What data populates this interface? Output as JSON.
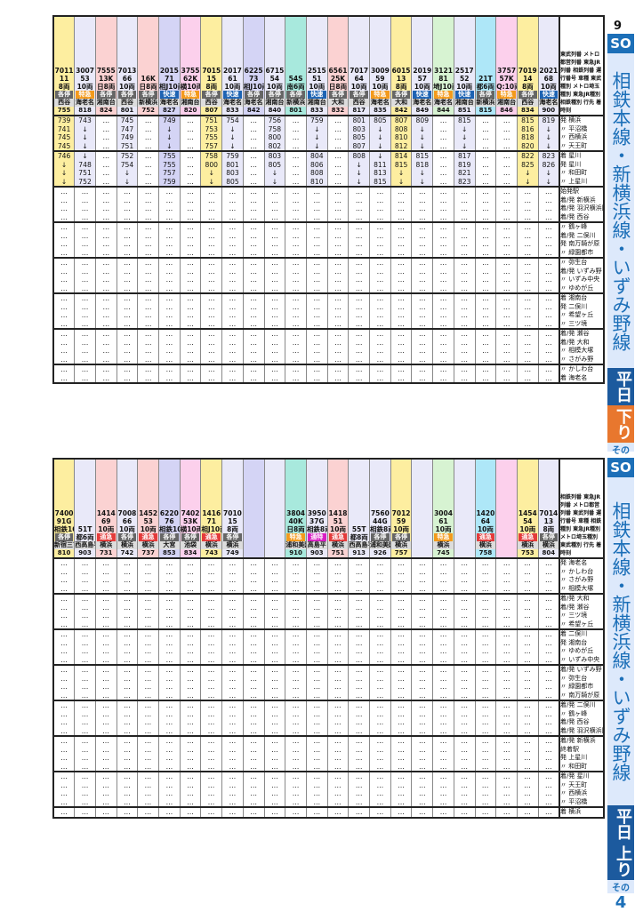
{
  "page": {
    "number": "9",
    "line_code": "SO",
    "line_name": "相鉄本線・新横浜線・いずみ野線",
    "top_direction": {
      "day": "平日",
      "dir": "下り",
      "part_label": "その",
      "part_no": "4"
    },
    "bottom_direction": {
      "day": "平日",
      "dir": "上り",
      "part_label": "その",
      "part_no": "4"
    }
  },
  "top_table": {
    "header_labels": [
      "東武列番",
      "メトロ都営列番",
      "東急JR列番",
      "相鉄列番",
      "運行番号",
      "車種",
      "東武種別",
      "メトロ埼玉種別",
      "東急JR種別",
      "相鉄種別",
      "行先",
      "着時刻"
    ],
    "columns": [
      {
        "sotetsu": "7011",
        "run": "11",
        "cars": "8両",
        "type": "各停",
        "dest": "西谷",
        "arr": "755",
        "times": [
          "739",
          "741",
          "745",
          "745",
          "746",
          "↓",
          "↓",
          "↓"
        ]
      },
      {
        "sotetsu": "3007",
        "run": "53",
        "cars": "10両",
        "type": "特急",
        "dest": "海老名",
        "arr": "818",
        "times": [
          "743",
          "↓",
          "↓",
          "↓",
          "↓",
          "748",
          "751",
          "752"
        ]
      },
      {
        "other": "612K / 213071",
        "sotetsu": "7555",
        "run": "13K",
        "cars": "日8両",
        "line_tag": "三田線",
        "type": "各停",
        "dest": "湘南台",
        "arr": "824",
        "origin": "西高島平 626",
        "times": [
          "…",
          "…",
          "…",
          "…",
          "…",
          "…",
          "…",
          "…"
        ]
      },
      {
        "sotetsu": "7013",
        "run": "66",
        "cars": "10両",
        "type": "各停",
        "dest": "西谷",
        "arr": "801",
        "times": [
          "745",
          "747",
          "749",
          "751",
          "752",
          "754",
          "↓",
          "↓"
        ]
      },
      {
        "other": "B616K / B616K / 216071",
        "run": "16K",
        "cars": "日8両",
        "line_tag": "埼玉線 南北線",
        "type": "各停",
        "dest": "新横浜",
        "arr": "752",
        "origin": "浦和美園 621",
        "times": [
          "…",
          "…",
          "…",
          "…",
          "…",
          "…",
          "…",
          "…"
        ]
      },
      {
        "sotetsu": "2015",
        "run": "71",
        "cars": "相J10両",
        "type": "快速",
        "dest": "海老名",
        "arr": "827",
        "times": [
          "749",
          "↓",
          "↓",
          "↓",
          "755",
          "755",
          "757",
          "759"
        ]
      },
      {
        "other": "E3162K / A562K / 062071",
        "sotetsu": "3755",
        "run": "62K",
        "cars": "横10両",
        "line_tag": "普通 各駅停車 急行",
        "type": "特急",
        "dest": "湘南台",
        "arr": "820",
        "origin": "森林公園 551",
        "times": [
          "…",
          "…",
          "…",
          "…",
          "…",
          "…",
          "…",
          "…"
        ]
      },
      {
        "sotetsu": "7015",
        "run": "15",
        "cars": "8両",
        "type": "各停",
        "dest": "西谷",
        "arr": "807",
        "times": [
          "751",
          "753",
          "755",
          "757",
          "758",
          "800",
          "↓",
          "↓"
        ]
      },
      {
        "sotetsu": "2017",
        "run": "61",
        "cars": "10両",
        "type": "快速",
        "dest": "海老名",
        "arr": "833",
        "times": [
          "754",
          "↓",
          "↓",
          "↓",
          "759",
          "801",
          "803",
          "805"
        ]
      },
      {
        "other": "225M",
        "sotetsu": "6225",
        "run": "73",
        "cars": "相J10両",
        "line_tag": "各駅停車",
        "type": "各停",
        "dest": "海老名",
        "arr": "842",
        "origin": "新宿 725",
        "times": [
          "…",
          "…",
          "…",
          "…",
          "…",
          "…",
          "…",
          "…"
        ]
      },
      {
        "sotetsu": "6715",
        "run": "54",
        "cars": "10両",
        "type": "各停",
        "dest": "湘南台",
        "arr": "840",
        "times": [
          "756",
          "758",
          "800",
          "802",
          "803",
          "805",
          "↓",
          "↓"
        ]
      },
      {
        "other": "B654S / B654S / 354071",
        "run": "54S",
        "cars": "南6両",
        "line_tag": "埼玉線 南北線",
        "type": "各停",
        "dest": "新横浜",
        "arr": "801",
        "origin": "鳩ケ谷 640",
        "times": [
          "…",
          "…",
          "…",
          "…",
          "…",
          "…",
          "…",
          "…"
        ]
      },
      {
        "sotetsu": "2515",
        "run": "51",
        "cars": "10両",
        "type": "快速",
        "dest": "湘南台",
        "arr": "833",
        "times": [
          "759",
          "↓",
          "↓",
          "↓",
          "804",
          "806",
          "808",
          "810"
        ]
      },
      {
        "other": "624K / 225071",
        "sotetsu": "6561",
        "run": "25K",
        "cars": "日8両",
        "line_tag": "三田線 急行",
        "type": "各停",
        "dest": "大和",
        "arr": "832",
        "origin": "西高島平 645",
        "times": [
          "…",
          "…",
          "…",
          "…",
          "…",
          "…",
          "…",
          "…"
        ]
      },
      {
        "sotetsu": "7017",
        "run": "64",
        "cars": "10両",
        "type": "各停",
        "dest": "西谷",
        "arr": "817",
        "times": [
          "801",
          "803",
          "805",
          "807",
          "808",
          "↓",
          "↓",
          "↓"
        ]
      },
      {
        "sotetsu": "3009",
        "run": "59",
        "cars": "10両",
        "type": "特急",
        "dest": "海老名",
        "arr": "835",
        "times": [
          "805",
          "↓",
          "↓",
          "↓",
          "↓",
          "811",
          "813",
          "815"
        ]
      },
      {
        "sotetsu": "6015",
        "run": "13",
        "cars": "8両",
        "type": "各停",
        "dest": "大和",
        "arr": "842",
        "times": [
          "807",
          "808",
          "810",
          "812",
          "814",
          "815",
          "↓",
          "↓"
        ]
      },
      {
        "sotetsu": "2019",
        "run": "57",
        "cars": "10両",
        "type": "快速",
        "dest": "海老名",
        "arr": "849",
        "times": [
          "809",
          "↓",
          "↓",
          "↓",
          "815",
          "818",
          "↓",
          "↓"
        ]
      },
      {
        "other": "4708K / 121M",
        "sotetsu": "3121",
        "run": "81",
        "cars": "埼J10両",
        "line_tag": "各駅停車 各駅停車",
        "type": "特急",
        "dest": "海老名",
        "arr": "844",
        "origin": "武蔵浦和 701",
        "times": [
          "…",
          "…",
          "…",
          "…",
          "…",
          "…",
          "…",
          "…"
        ]
      },
      {
        "sotetsu": "2517",
        "run": "52",
        "cars": "10両",
        "type": "快速",
        "dest": "湘南台",
        "arr": "851",
        "times": [
          "815",
          "↓",
          "↓",
          "↓",
          "817",
          "819",
          "821",
          "823"
        ]
      },
      {
        "other": "620T / 421071",
        "run": "21T",
        "cars": "都6両",
        "line_tag": "三田線",
        "type": "各停",
        "dest": "新横浜",
        "arr": "815",
        "origin": "西高島平 649",
        "times": [
          "…",
          "…",
          "…",
          "…",
          "…",
          "…",
          "…",
          "…"
        ]
      },
      {
        "other": "A3157K / A757K / 057071",
        "sotetsu": "3757",
        "run": "57K",
        "cars": "Q:10両",
        "line_tag": "普通 各駅停車 急行",
        "type": "特急",
        "dest": "湘南台",
        "arr": "846",
        "origin": "志木 700",
        "times": [
          "…",
          "…",
          "…",
          "…",
          "…",
          "…",
          "…",
          "…"
        ]
      },
      {
        "sotetsu": "7019",
        "run": "14",
        "cars": "8両",
        "type": "各停",
        "dest": "西谷",
        "arr": "834",
        "times": [
          "815",
          "816",
          "818",
          "820",
          "822",
          "825",
          "↓",
          "↓"
        ]
      },
      {
        "sotetsu": "2021",
        "run": "68",
        "cars": "10両",
        "type": "快速",
        "dest": "海老名",
        "arr": "900",
        "times": [
          "819",
          "↓",
          "↓",
          "↓",
          "823",
          "826",
          "↓",
          "↓"
        ]
      }
    ],
    "stations": [
      {
        "mark": "発",
        "name": "横浜"
      },
      {
        "mark": "〃",
        "name": "平沼橋"
      },
      {
        "mark": "〃",
        "name": "西横浜"
      },
      {
        "mark": "〃",
        "name": "天王町"
      },
      {
        "mark": "着",
        "name": "星川"
      },
      {
        "mark": "発",
        "name": "星川"
      },
      {
        "mark": "〃",
        "name": "和田町"
      },
      {
        "mark": "〃",
        "name": "上星川"
      },
      {
        "mark": "",
        "name": "始発駅"
      },
      {
        "mark": "着/発",
        "name": "新横浜"
      },
      {
        "mark": "着/発",
        "name": "羽沢横浜国大"
      },
      {
        "mark": "着/発",
        "name": "西谷"
      },
      {
        "mark": "〃",
        "name": "鶴ヶ峰"
      },
      {
        "mark": "着/発",
        "name": "二俣川"
      },
      {
        "mark": "発",
        "name": "南万騎が原"
      },
      {
        "mark": "〃",
        "name": "緑園都市"
      },
      {
        "mark": "〃",
        "name": "弥生台"
      },
      {
        "mark": "着/発",
        "name": "いずみ野"
      },
      {
        "mark": "〃",
        "name": "いずみ中央"
      },
      {
        "mark": "〃",
        "name": "ゆめが丘"
      },
      {
        "mark": "着",
        "name": "湘南台"
      },
      {
        "mark": "発",
        "name": "二俣川"
      },
      {
        "mark": "〃",
        "name": "希望ヶ丘"
      },
      {
        "mark": "〃",
        "name": "三ツ境"
      },
      {
        "mark": "着/発",
        "name": "瀬谷"
      },
      {
        "mark": "着/発",
        "name": "大和"
      },
      {
        "mark": "〃",
        "name": "相模大塚"
      },
      {
        "mark": "〃",
        "name": "さがみ野"
      },
      {
        "mark": "〃",
        "name": "かしわ台"
      },
      {
        "mark": "着",
        "name": "海老名"
      }
    ],
    "connection_note": "接続→ ←なし"
  },
  "bottom_table": {
    "header_labels": [
      "相鉄列番",
      "東急JR列番",
      "メトロ都営列番",
      "東武列番",
      "運行番号",
      "車種",
      "相鉄種別",
      "東急JR種別",
      "メトロ埼玉種別",
      "東武種別",
      "行先",
      "着時刻"
    ],
    "columns": [
      {
        "sotetsu": "7400",
        "other": "991072 / B691G",
        "run": "91G",
        "cars": "相鉄10両",
        "type": "各停",
        "line_tag": "急行 各駅停車",
        "dest": "新宿三丁目",
        "arr": "810"
      },
      {
        "other": "451072 / 751T",
        "run": "51T",
        "cars": "都6両",
        "type": "",
        "line_tag": "各停 三田線",
        "dest": "西高島平",
        "arr": "903"
      },
      {
        "sotetsu": "1414",
        "run": "69",
        "cars": "10両",
        "type": "通急",
        "dest": "横浜",
        "arr": "731",
        "first": "654"
      },
      {
        "sotetsu": "7008",
        "run": "66",
        "cars": "10両",
        "type": "各停",
        "dest": "横浜",
        "arr": "742"
      },
      {
        "sotetsu": "1452",
        "run": "53",
        "cars": "10両",
        "type": "通急",
        "dest": "横浜",
        "arr": "737"
      },
      {
        "sotetsu": "6220",
        "other": "220M / 4865K",
        "run": "76",
        "cars": "相鉄10両",
        "type": "各停",
        "line_tag": "各駅停車 各駅停車",
        "dest": "大宮",
        "arr": "853",
        "first": "658"
      },
      {
        "sotetsu": "7402",
        "other": "053072 / 8753K",
        "run": "53K",
        "cars": "横10両",
        "type": "各停",
        "line_tag": "急行 各駅停車",
        "dest": "池袋",
        "arr": "834"
      },
      {
        "sotetsu": "1416",
        "run": "71",
        "cars": "相J10両",
        "type": "通急",
        "dest": "横浜",
        "arr": "743",
        "first": "702"
      },
      {
        "sotetsu": "7010",
        "run": "15",
        "cars": "8両",
        "type": "各停",
        "dest": "横浜",
        "arr": "749"
      },
      {
        "sotetsu": "",
        "run": "",
        "cars": "",
        "type": "",
        "dest": "",
        "arr": ""
      },
      {
        "sotetsu": "",
        "run": "",
        "cars": "",
        "type": "",
        "dest": "",
        "arr": ""
      },
      {
        "sotetsu": "3804",
        "other": "240072 / A740K / A740K",
        "run": "40K",
        "cars": "日8両",
        "type": "特急",
        "line_tag": "急行 南北線 埼玉線",
        "dest": "浦和美園",
        "arr": "910",
        "first": "708"
      },
      {
        "sotetsu": "3950",
        "other": "637072 / 737G",
        "run": "37G",
        "cars": "相鉄8両",
        "type": "通特",
        "line_tag": "急行 三田線",
        "dest": "高島平",
        "arr": "903"
      },
      {
        "sotetsu": "1418",
        "run": "51",
        "cars": "10両",
        "type": "通急",
        "dest": "横浜",
        "arr": "751",
        "first": "709"
      },
      {
        "other": "455072 / 755T",
        "run": "55T",
        "cars": "都8両",
        "type": "",
        "line_tag": "急行 三田線",
        "dest": "西高島平",
        "arr": "913"
      },
      {
        "sotetsu": "7560",
        "other": "644072 / A744G / A744G",
        "run": "44G",
        "cars": "相鉄8両",
        "type": "各停",
        "line_tag": "急行 南北線 埼玉線",
        "dest": "浦和美園",
        "arr": "926"
      },
      {
        "sotetsu": "7012",
        "run": "59",
        "cars": "10両",
        "type": "各停",
        "dest": "横浜",
        "arr": "757"
      },
      {
        "sotetsu": "",
        "run": "",
        "cars": "",
        "type": "",
        "dest": "",
        "arr": ""
      },
      {
        "sotetsu": "3004",
        "run": "61",
        "cars": "10両",
        "type": "特急",
        "dest": "横浜",
        "arr": "745",
        "first": "716"
      },
      {
        "sotetsu": "",
        "run": "",
        "cars": "",
        "type": "",
        "dest": "",
        "arr": ""
      },
      {
        "sotetsu": "1420",
        "run": "64",
        "cars": "10両",
        "type": "通急",
        "dest": "横浜",
        "arr": "758",
        "first": "717"
      },
      {
        "sotetsu": "",
        "run": "",
        "cars": "",
        "type": "",
        "dest": "",
        "arr": ""
      },
      {
        "sotetsu": "1454",
        "run": "54",
        "cars": "10両",
        "type": "通急",
        "dest": "横浜",
        "arr": "753"
      },
      {
        "sotetsu": "7014",
        "run": "13",
        "cars": "8両",
        "type": "各停",
        "dest": "横浜",
        "arr": "804"
      }
    ],
    "stations": [
      {
        "mark": "発",
        "name": "海老名"
      },
      {
        "mark": "〃",
        "name": "かしわ台"
      },
      {
        "mark": "〃",
        "name": "さがみ野"
      },
      {
        "mark": "〃",
        "name": "相模大塚"
      },
      {
        "mark": "着/発",
        "name": "大和"
      },
      {
        "mark": "着/発",
        "name": "瀬谷"
      },
      {
        "mark": "〃",
        "name": "三ツ境"
      },
      {
        "mark": "〃",
        "name": "希望ヶ丘"
      },
      {
        "mark": "着",
        "name": "二俣川"
      },
      {
        "mark": "発",
        "name": "湘南台"
      },
      {
        "mark": "〃",
        "name": "ゆめが丘"
      },
      {
        "mark": "〃",
        "name": "いずみ中央"
      },
      {
        "mark": "着/発",
        "name": "いずみ野"
      },
      {
        "mark": "〃",
        "name": "弥生台"
      },
      {
        "mark": "〃",
        "name": "緑園都市"
      },
      {
        "mark": "〃",
        "name": "南万騎が原"
      },
      {
        "mark": "着/発",
        "name": "二俣川"
      },
      {
        "mark": "〃",
        "name": "鶴ヶ峰"
      },
      {
        "mark": "着/発",
        "name": "西谷"
      },
      {
        "mark": "着/発",
        "name": "羽沢横浜国大"
      },
      {
        "mark": "着/発",
        "name": "新横浜"
      },
      {
        "mark": "",
        "name": "終着駅"
      },
      {
        "mark": "発",
        "name": "上星川"
      },
      {
        "mark": "〃",
        "name": "和田町"
      },
      {
        "mark": "着/発",
        "name": "星川"
      },
      {
        "mark": "〃",
        "name": "天王町"
      },
      {
        "mark": "〃",
        "name": "西横浜"
      },
      {
        "mark": "〃",
        "name": "平沼橋"
      },
      {
        "mark": "着",
        "name": "横浜"
      }
    ],
    "connection_note": "接続→ ←なし"
  },
  "ui": {
    "ellipsis": "…",
    "down_arrow": "↓",
    "pass_mark": "∥",
    "tri_down": "▼",
    "colors": {
      "accent": "#1c6fb8",
      "down": "#e8772e",
      "rapid": "#1d63b3",
      "express": "#f39a1c",
      "local": "#666666"
    }
  }
}
